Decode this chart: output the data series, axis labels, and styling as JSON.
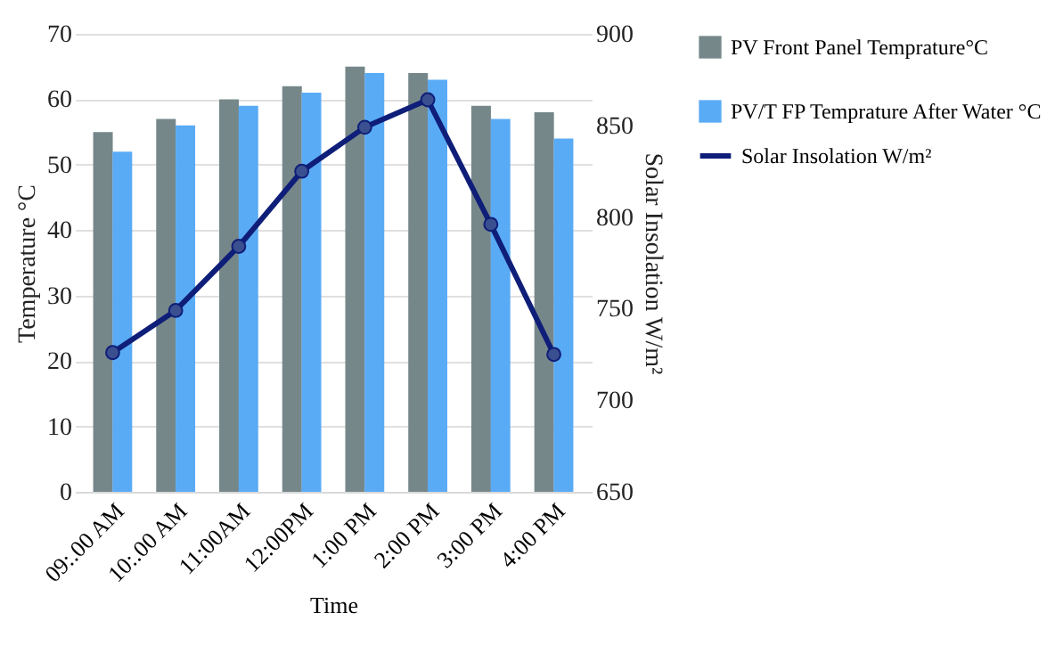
{
  "chart_data": {
    "type": "bar",
    "xlabel": "Time",
    "ylabel": "Temperature  °C",
    "y2label": "Solar Insolation  W/m²",
    "categories": [
      "09:.00 AM",
      "10:.00 AM",
      "11:00AM",
      "12:00PM",
      "1:00 PM",
      "2:00 PM",
      "3:00 PM",
      "4:00 PM"
    ],
    "series": [
      {
        "name": "PV Front Panel Temprature°C",
        "color": "#76878a",
        "values": [
          55,
          57,
          60,
          62,
          65,
          64,
          59,
          58
        ]
      },
      {
        "name": "PV/T FP Temprature After Water °C",
        "color": "#5aabf5",
        "values": [
          52,
          56,
          59,
          61,
          64,
          63,
          57,
          54
        ]
      },
      {
        "name": "Solar Insolation W/m²",
        "type": "line",
        "axis": "y2",
        "color": "#0f1e78",
        "marker": "circle",
        "values": [
          726,
          749,
          784,
          825,
          849,
          864,
          796,
          725
        ]
      }
    ],
    "ylim": [
      0,
      70
    ],
    "yticks": [
      0,
      10,
      20,
      30,
      40,
      50,
      60,
      70
    ],
    "y2lim": [
      650,
      900
    ],
    "y2ticks": [
      650,
      700,
      750,
      800,
      850,
      900
    ],
    "grid": "y",
    "legend": "right"
  }
}
